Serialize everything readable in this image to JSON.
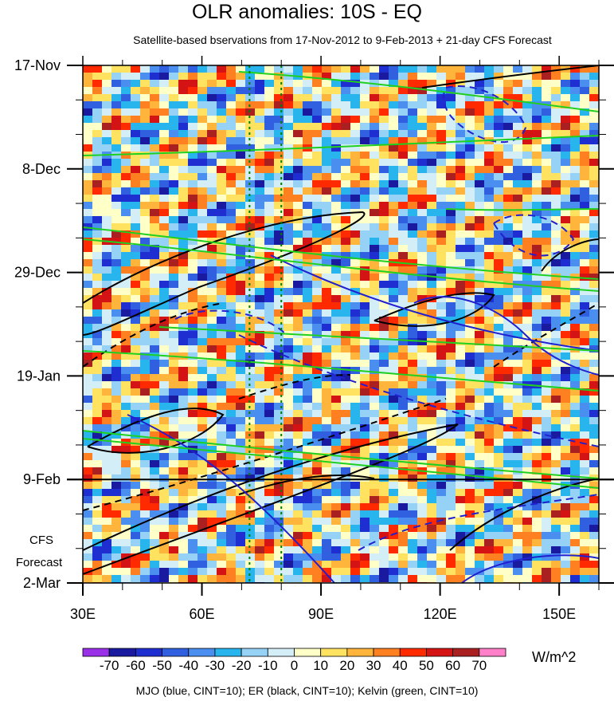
{
  "chart_data": {
    "type": "heatmap",
    "title": "OLR anomalies: 10S - EQ",
    "subtitle": "Satellite-based bservations from 17-Nov-2012 to 9-Feb-2013 + 21-day CFS Forecast",
    "xlim": [
      30,
      160
    ],
    "x_ticks": [
      {
        "value": 30,
        "label": "30E"
      },
      {
        "value": 60,
        "label": "60E"
      },
      {
        "value": 90,
        "label": "90E"
      },
      {
        "value": 120,
        "label": "120E"
      },
      {
        "value": 150,
        "label": "150E"
      }
    ],
    "y_ticks": [
      {
        "day": 0,
        "label": "17-Nov"
      },
      {
        "day": 21,
        "label": "8-Dec"
      },
      {
        "day": 42,
        "label": "29-Dec"
      },
      {
        "day": 63,
        "label": "19-Jan"
      },
      {
        "day": 84,
        "label": "9-Feb"
      },
      {
        "day": 105,
        "label": "2-Mar"
      }
    ],
    "ylim_days": [
      0,
      105
    ],
    "forecast_start_day": 84,
    "forecast_label": [
      "CFS",
      "Forecast"
    ],
    "reference_lines_lon": [
      72,
      80
    ],
    "colorbar": {
      "labels": [
        "-70",
        "-60",
        "-50",
        "-40",
        "-30",
        "-20",
        "-10",
        "0",
        "10",
        "20",
        "30",
        "40",
        "50",
        "60",
        "70"
      ],
      "colors": [
        "#9a30e8",
        "#1a1aa0",
        "#1e2ed0",
        "#3060e0",
        "#4a8ef0",
        "#28b4ec",
        "#96d2f5",
        "#d4eef8",
        "#ffffc8",
        "#ffe260",
        "#ffb43c",
        "#ff8020",
        "#ff2a00",
        "#d41414",
        "#aa2020",
        "#ff80c8"
      ],
      "units": "W/m^2"
    },
    "footer": "MJO (blue, CINT=10); ER (black, CINT=10); Kelvin (green, CINT=10)",
    "contours": [
      {
        "name": "MJO",
        "color": "#2020d0"
      },
      {
        "name": "ER",
        "color": "#000000"
      },
      {
        "name": "Kelvin",
        "color": "#20d020"
      }
    ]
  }
}
